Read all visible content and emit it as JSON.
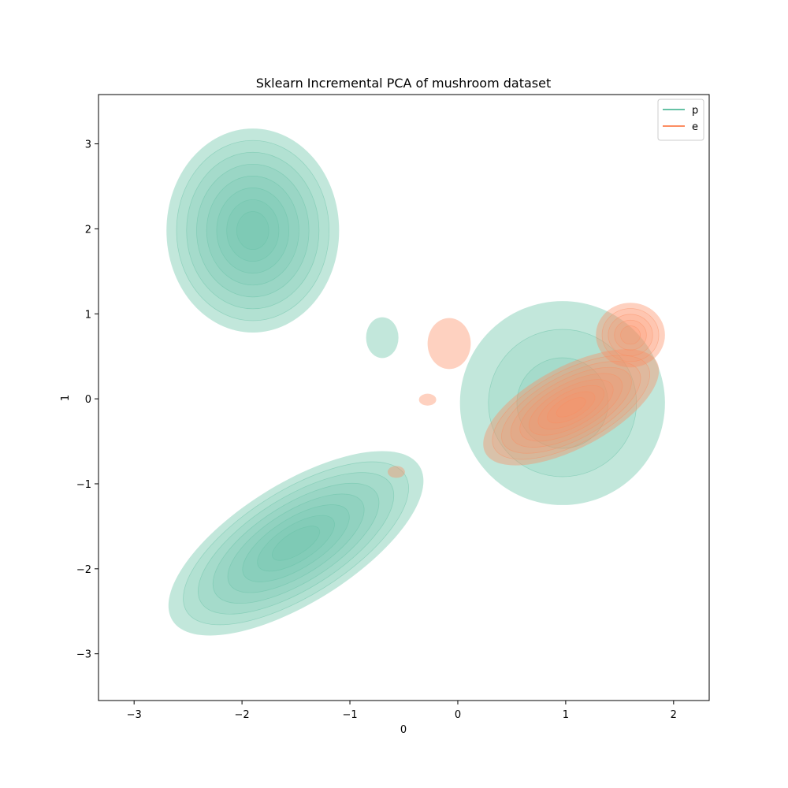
{
  "chart_data": {
    "type": "kde",
    "title": "Sklearn Incremental PCA of mushroom dataset",
    "xlabel": "0",
    "ylabel": "1",
    "xlim": [
      -3.33,
      2.33
    ],
    "ylim": [
      -3.55,
      3.58
    ],
    "x_ticks": [
      {
        "value": -3,
        "label": "−3"
      },
      {
        "value": -2,
        "label": "−2"
      },
      {
        "value": -1,
        "label": "−1"
      },
      {
        "value": 0,
        "label": "0"
      },
      {
        "value": 1,
        "label": "1"
      },
      {
        "value": 2,
        "label": "2"
      }
    ],
    "y_ticks": [
      {
        "value": 3,
        "label": "3"
      },
      {
        "value": 2,
        "label": "2"
      },
      {
        "value": 1,
        "label": "1"
      },
      {
        "value": 0,
        "label": "0"
      },
      {
        "value": -1,
        "label": "−1"
      },
      {
        "value": -2,
        "label": "−2"
      },
      {
        "value": -3,
        "label": "−3"
      }
    ],
    "legend_position": "top-right",
    "series": [
      {
        "name": "p",
        "color": "#66c2a5",
        "clusters": [
          {
            "cx": -1.9,
            "cy": 1.98,
            "rx": 0.8,
            "ry": 1.2,
            "rot": 0,
            "levels": 8
          },
          {
            "cx": -1.5,
            "cy": -1.7,
            "rx": 1.35,
            "ry": 0.7,
            "rot": 32,
            "levels": 8
          },
          {
            "cx": 0.97,
            "cy": -0.05,
            "rx": 0.95,
            "ry": 1.2,
            "rot": 0,
            "levels": 3
          },
          {
            "cx": -0.7,
            "cy": 0.72,
            "rx": 0.15,
            "ry": 0.24,
            "rot": 0,
            "levels": 1
          }
        ]
      },
      {
        "name": "e",
        "color": "#fc8d62",
        "clusters": [
          {
            "cx": 1.05,
            "cy": -0.1,
            "rx": 0.9,
            "ry": 0.48,
            "rot": 28,
            "levels": 9
          },
          {
            "cx": 1.6,
            "cy": 0.75,
            "rx": 0.32,
            "ry": 0.38,
            "rot": 0,
            "levels": 5
          },
          {
            "cx": -0.08,
            "cy": 0.65,
            "rx": 0.2,
            "ry": 0.3,
            "rot": 0,
            "levels": 1
          },
          {
            "cx": -0.28,
            "cy": -0.01,
            "rx": 0.08,
            "ry": 0.07,
            "rot": 0,
            "levels": 1
          },
          {
            "cx": -0.57,
            "cy": -0.86,
            "rx": 0.08,
            "ry": 0.07,
            "rot": 0,
            "levels": 1
          }
        ]
      }
    ]
  }
}
